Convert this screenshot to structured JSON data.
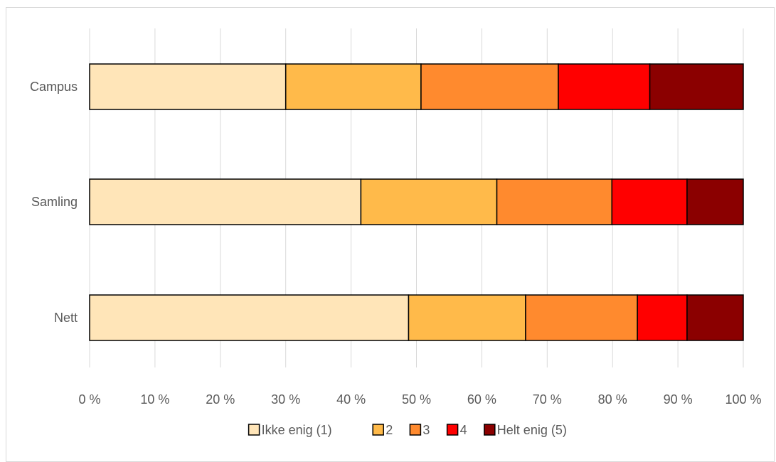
{
  "chart_data": {
    "type": "bar",
    "orientation": "horizontal",
    "stacked": true,
    "percent_stacked": true,
    "categories": [
      "Campus",
      "Samling",
      "Nett"
    ],
    "series": [
      {
        "name": "Ikke enig (1)",
        "color": "#FFE5B8",
        "values": [
          30,
          41.5,
          48.8
        ]
      },
      {
        "name": "2",
        "color": "#FFBA4A",
        "values": [
          20.7,
          20.8,
          17.9
        ]
      },
      {
        "name": "3",
        "color": "#FF8A2E",
        "values": [
          21,
          17.6,
          17.1
        ]
      },
      {
        "name": "4",
        "color": "#FF0000",
        "values": [
          14,
          11.5,
          7.6
        ]
      },
      {
        "name": "Helt enig (5)",
        "color": "#8B0000",
        "values": [
          14.3,
          8.6,
          8.6
        ]
      }
    ],
    "x_ticks": [
      "0 %",
      "10 %",
      "20 %",
      "30 %",
      "40 %",
      "50 %",
      "60 %",
      "70 %",
      "80 %",
      "90 %",
      "100 %"
    ],
    "xlim": [
      0,
      100
    ],
    "grid": "vertical",
    "legend": "bottom",
    "title": "",
    "xlabel": "",
    "ylabel": ""
  }
}
